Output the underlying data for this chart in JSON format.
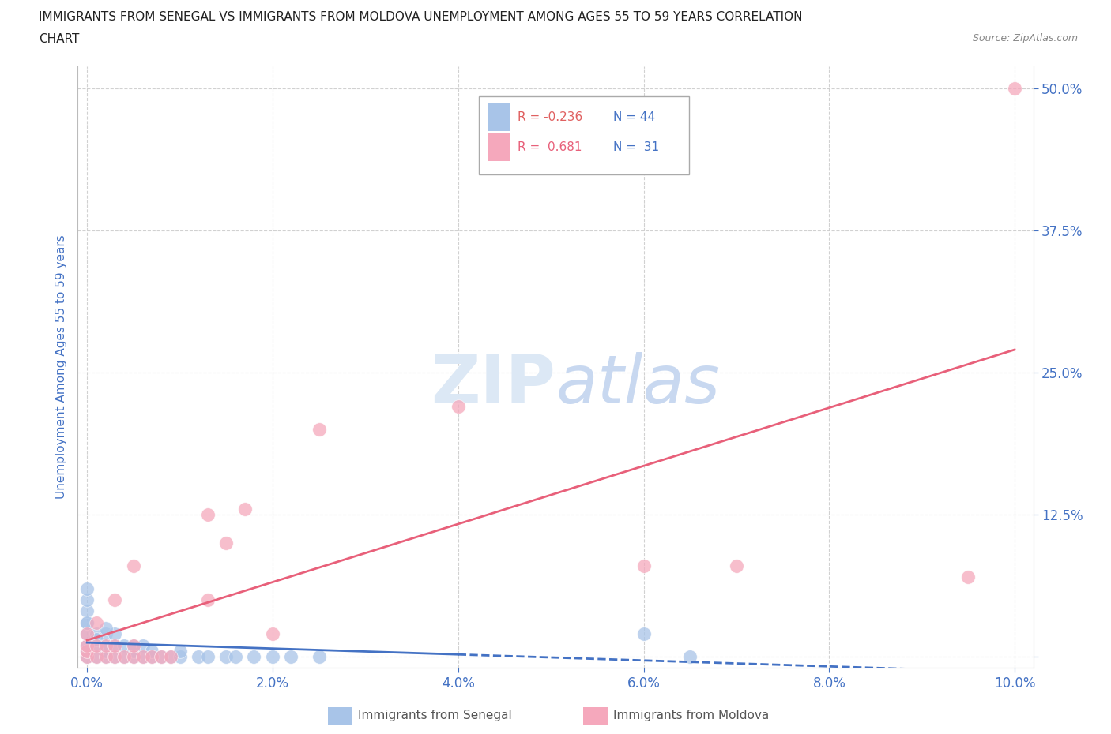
{
  "title_line1": "IMMIGRANTS FROM SENEGAL VS IMMIGRANTS FROM MOLDOVA UNEMPLOYMENT AMONG AGES 55 TO 59 YEARS CORRELATION",
  "title_line2": "CHART",
  "source": "Source: ZipAtlas.com",
  "ylabel": "Unemployment Among Ages 55 to 59 years",
  "xlim": [
    -0.001,
    0.102
  ],
  "ylim": [
    -0.01,
    0.52
  ],
  "xticks": [
    0.0,
    0.02,
    0.04,
    0.06,
    0.08,
    0.1
  ],
  "yticks": [
    0.0,
    0.125,
    0.25,
    0.375,
    0.5
  ],
  "xticklabels": [
    "0.0%",
    "2.0%",
    "4.0%",
    "6.0%",
    "8.0%",
    "10.0%"
  ],
  "yticklabels_right": [
    "",
    "12.5%",
    "25.0%",
    "37.5%",
    "50.0%"
  ],
  "watermark": "ZIPatlas",
  "legend_r1": "R = -0.236",
  "legend_n1": "N = 44",
  "legend_r2": "R =  0.681",
  "legend_n2": "N =  31",
  "color_senegal": "#a8c4e8",
  "color_moldova": "#f5a8bc",
  "color_senegal_line": "#4472c4",
  "color_moldova_line": "#e8607a",
  "color_axis_labels": "#4472c4",
  "grid_color": "#cccccc",
  "senegal_x": [
    0.0,
    0.0,
    0.0,
    0.0,
    0.0,
    0.0,
    0.0,
    0.0,
    0.001,
    0.001,
    0.001,
    0.002,
    0.002,
    0.002,
    0.002,
    0.003,
    0.003,
    0.003,
    0.003,
    0.004,
    0.004,
    0.005,
    0.005,
    0.005,
    0.006,
    0.006,
    0.007,
    0.007,
    0.008,
    0.008,
    0.009,
    0.01,
    0.01,
    0.011,
    0.012,
    0.013,
    0.015,
    0.018,
    0.02,
    0.022,
    0.025,
    0.028,
    0.06,
    0.065
  ],
  "senegal_y": [
    0.0,
    0.005,
    0.01,
    0.015,
    0.02,
    0.03,
    0.04,
    0.05,
    0.0,
    0.01,
    0.02,
    0.0,
    0.01,
    0.02,
    0.03,
    0.0,
    0.01,
    0.02,
    0.03,
    0.0,
    0.01,
    0.0,
    0.01,
    0.02,
    0.0,
    0.01,
    0.0,
    0.01,
    0.0,
    0.01,
    0.0,
    0.0,
    0.01,
    0.0,
    0.0,
    0.0,
    0.0,
    0.0,
    0.0,
    0.0,
    0.0,
    0.0,
    0.02,
    0.0
  ],
  "moldova_x": [
    0.0,
    0.0,
    0.0,
    0.0,
    0.0,
    0.001,
    0.001,
    0.002,
    0.002,
    0.003,
    0.003,
    0.003,
    0.004,
    0.005,
    0.005,
    0.006,
    0.007,
    0.008,
    0.009,
    0.01,
    0.012,
    0.015,
    0.016,
    0.017,
    0.02,
    0.025,
    0.04,
    0.06,
    0.07,
    0.095,
    0.1
  ],
  "moldova_y": [
    0.0,
    0.005,
    0.01,
    0.02,
    0.05,
    0.0,
    0.01,
    0.0,
    0.01,
    0.0,
    0.01,
    0.02,
    0.01,
    0.0,
    0.01,
    0.0,
    0.0,
    0.01,
    0.0,
    0.0,
    0.01,
    0.05,
    0.1,
    0.13,
    0.02,
    0.2,
    0.22,
    0.08,
    0.08,
    0.07,
    0.5
  ]
}
